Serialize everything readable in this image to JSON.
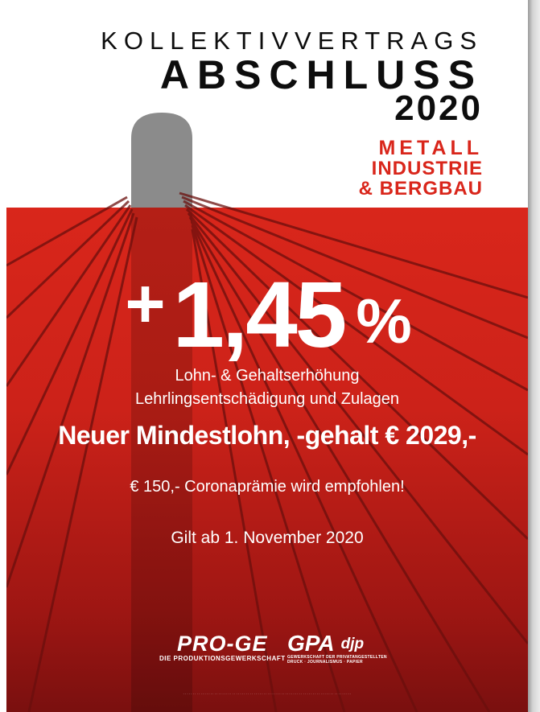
{
  "header": {
    "line1": "KOLLEKTIVVERTRAGS",
    "line2": "ABSCHLUSS",
    "year": "2020"
  },
  "sector": {
    "line1": "METALL",
    "line2": "INDUSTRIE",
    "line3": "& BERGBAU"
  },
  "headline": {
    "plus": "+",
    "value": "1,45",
    "unit": "%"
  },
  "body": {
    "line1": "Lohn- & Gehaltserhöhung",
    "line2": "Lehrlingsentschädigung und Zulagen",
    "minimum": "Neuer Mindestlohn, -gehalt € 2029,-",
    "bonus": "€ 150,- Coronaprämie wird empfohlen!",
    "valid": "Gilt ab 1. November 2020"
  },
  "logos": {
    "proge_name": "PRO-GE",
    "proge_tag": "DIE PRODUKTIONSGEWERKSCHAFT",
    "gpa_name": "GPA",
    "djp_name": "djp",
    "gpa_tag_line1": "GEWERKSCHAFT DER PRIVATANGESTELLTEN",
    "gpa_tag_line2": "DRUCK · JOURNALISMUS · PAPIER"
  },
  "colors": {
    "accent_red": "#d9261b",
    "dark_text": "#0d0d0d"
  }
}
